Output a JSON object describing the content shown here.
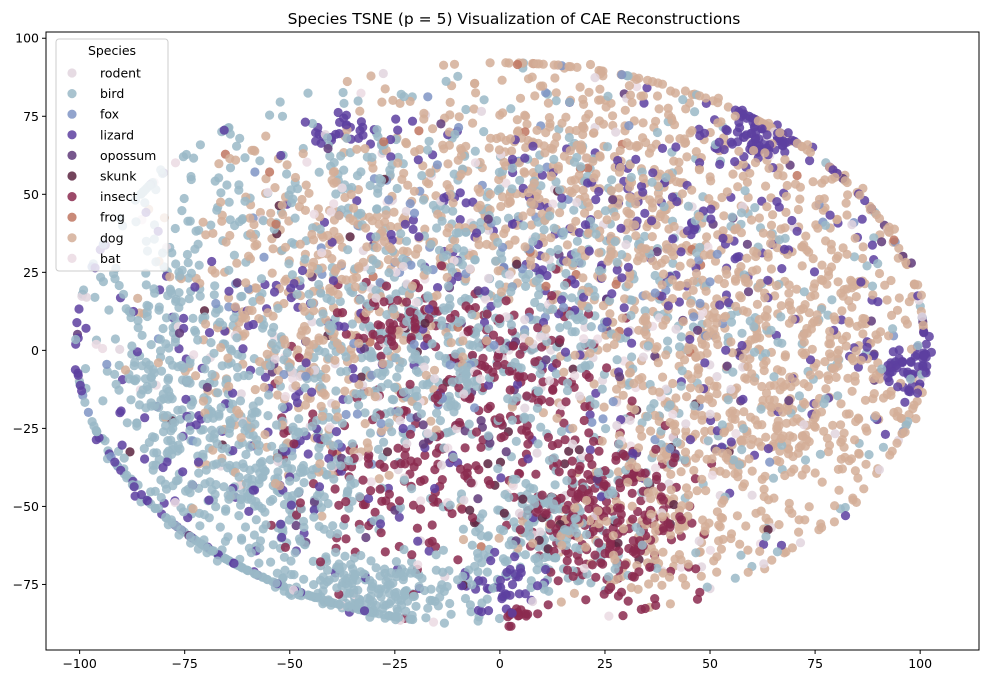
{
  "chart_data": {
    "type": "scatter",
    "title": "Species TSNE (p = 5) Visualization of CAE Reconstructions",
    "xlabel": "",
    "ylabel": "",
    "xlim": [
      -108,
      114
    ],
    "ylim": [
      -96,
      102
    ],
    "xticks": [
      -100,
      -75,
      -50,
      -25,
      0,
      25,
      50,
      75,
      100
    ],
    "yticks": [
      -75,
      -50,
      -25,
      0,
      25,
      50,
      75,
      100
    ],
    "grid": false,
    "legend": {
      "title": "Species",
      "placement": "upper left"
    },
    "series": [
      {
        "name": "rodent",
        "color": "#e2d5de",
        "clusters": [
          {
            "cx": -10,
            "cy": 10,
            "sx": 50,
            "sy": 40,
            "n": 90
          },
          {
            "cx": 20,
            "cy": -20,
            "sx": 40,
            "sy": 35,
            "n": 60
          }
        ]
      },
      {
        "name": "bird",
        "color": "#9ab9c7",
        "clusters": [
          {
            "cx": -80,
            "cy": -10,
            "sx": 12,
            "sy": 30,
            "n": 350
          },
          {
            "cx": -55,
            "cy": -45,
            "sx": 15,
            "sy": 18,
            "n": 300
          },
          {
            "cx": -30,
            "cy": -78,
            "sx": 15,
            "sy": 7,
            "n": 250
          },
          {
            "cx": -20,
            "cy": 0,
            "sx": 20,
            "sy": 18,
            "n": 350
          },
          {
            "cx": 10,
            "cy": -60,
            "sx": 10,
            "sy": 12,
            "n": 150
          },
          {
            "cx": 15,
            "cy": 30,
            "sx": 25,
            "sy": 30,
            "n": 250
          },
          {
            "cx": 45,
            "cy": -10,
            "sx": 30,
            "sy": 30,
            "n": 200
          },
          {
            "cx": -40,
            "cy": 55,
            "sx": 25,
            "sy": 15,
            "n": 150
          }
        ]
      },
      {
        "name": "fox",
        "color": "#7f94c4",
        "clusters": [
          {
            "cx": -40,
            "cy": 10,
            "sx": 40,
            "sy": 30,
            "n": 60
          },
          {
            "cx": 30,
            "cy": 20,
            "sx": 40,
            "sy": 30,
            "n": 60
          }
        ]
      },
      {
        "name": "lizard",
        "color": "#5d3fa0",
        "clusters": [
          {
            "cx": -60,
            "cy": -20,
            "sx": 30,
            "sy": 35,
            "n": 200
          },
          {
            "cx": 62,
            "cy": 68,
            "sx": 6,
            "sy": 4,
            "n": 80
          },
          {
            "cx": 97,
            "cy": -5,
            "sx": 5,
            "sy": 4,
            "n": 60
          },
          {
            "cx": 20,
            "cy": 40,
            "sx": 25,
            "sy": 20,
            "n": 120
          },
          {
            "cx": 50,
            "cy": 10,
            "sx": 30,
            "sy": 30,
            "n": 120
          },
          {
            "cx": 0,
            "cy": -75,
            "sx": 5,
            "sy": 4,
            "n": 40
          },
          {
            "cx": -35,
            "cy": 70,
            "sx": 8,
            "sy": 4,
            "n": 30
          }
        ]
      },
      {
        "name": "opossum",
        "color": "#5f3a79",
        "clusters": [
          {
            "cx": -20,
            "cy": -10,
            "sx": 40,
            "sy": 40,
            "n": 40
          },
          {
            "cx": 40,
            "cy": 20,
            "sx": 40,
            "sy": 35,
            "n": 40
          }
        ]
      },
      {
        "name": "skunk",
        "color": "#5b2340",
        "clusters": [
          {
            "cx": 20,
            "cy": -45,
            "sx": 15,
            "sy": 15,
            "n": 30
          },
          {
            "cx": -30,
            "cy": 0,
            "sx": 30,
            "sy": 30,
            "n": 20
          }
        ]
      },
      {
        "name": "insect",
        "color": "#8b2a4f",
        "clusters": [
          {
            "cx": 25,
            "cy": -55,
            "sx": 10,
            "sy": 14,
            "n": 250
          },
          {
            "cx": 0,
            "cy": -10,
            "sx": 12,
            "sy": 15,
            "n": 150
          },
          {
            "cx": -25,
            "cy": -40,
            "sx": 15,
            "sy": 15,
            "n": 120
          },
          {
            "cx": -25,
            "cy": 12,
            "sx": 8,
            "sy": 6,
            "n": 60
          },
          {
            "cx": 5,
            "cy": -85,
            "sx": 3,
            "sy": 2,
            "n": 15
          }
        ]
      },
      {
        "name": "frog",
        "color": "#c07560",
        "clusters": [
          {
            "cx": 0,
            "cy": 30,
            "sx": 40,
            "sy": 35,
            "n": 30
          }
        ]
      },
      {
        "name": "dog",
        "color": "#d3ae98",
        "clusters": [
          {
            "cx": 50,
            "cy": 30,
            "sx": 22,
            "sy": 28,
            "n": 500
          },
          {
            "cx": 60,
            "cy": -25,
            "sx": 20,
            "sy": 20,
            "n": 350
          },
          {
            "cx": 10,
            "cy": 60,
            "sx": 20,
            "sy": 18,
            "n": 300
          },
          {
            "cx": -35,
            "cy": 30,
            "sx": 20,
            "sy": 20,
            "n": 300
          },
          {
            "cx": -45,
            "cy": -10,
            "sx": 15,
            "sy": 20,
            "n": 150
          },
          {
            "cx": 35,
            "cy": -60,
            "sx": 15,
            "sy": 10,
            "n": 120
          },
          {
            "cx": 80,
            "cy": 10,
            "sx": 12,
            "sy": 20,
            "n": 150
          }
        ]
      },
      {
        "name": "bat",
        "color": "#ebdae3",
        "clusters": [
          {
            "cx": 10,
            "cy": -30,
            "sx": 40,
            "sy": 35,
            "n": 60
          },
          {
            "cx": -20,
            "cy": 40,
            "sx": 40,
            "sy": 25,
            "n": 40
          }
        ]
      }
    ]
  }
}
